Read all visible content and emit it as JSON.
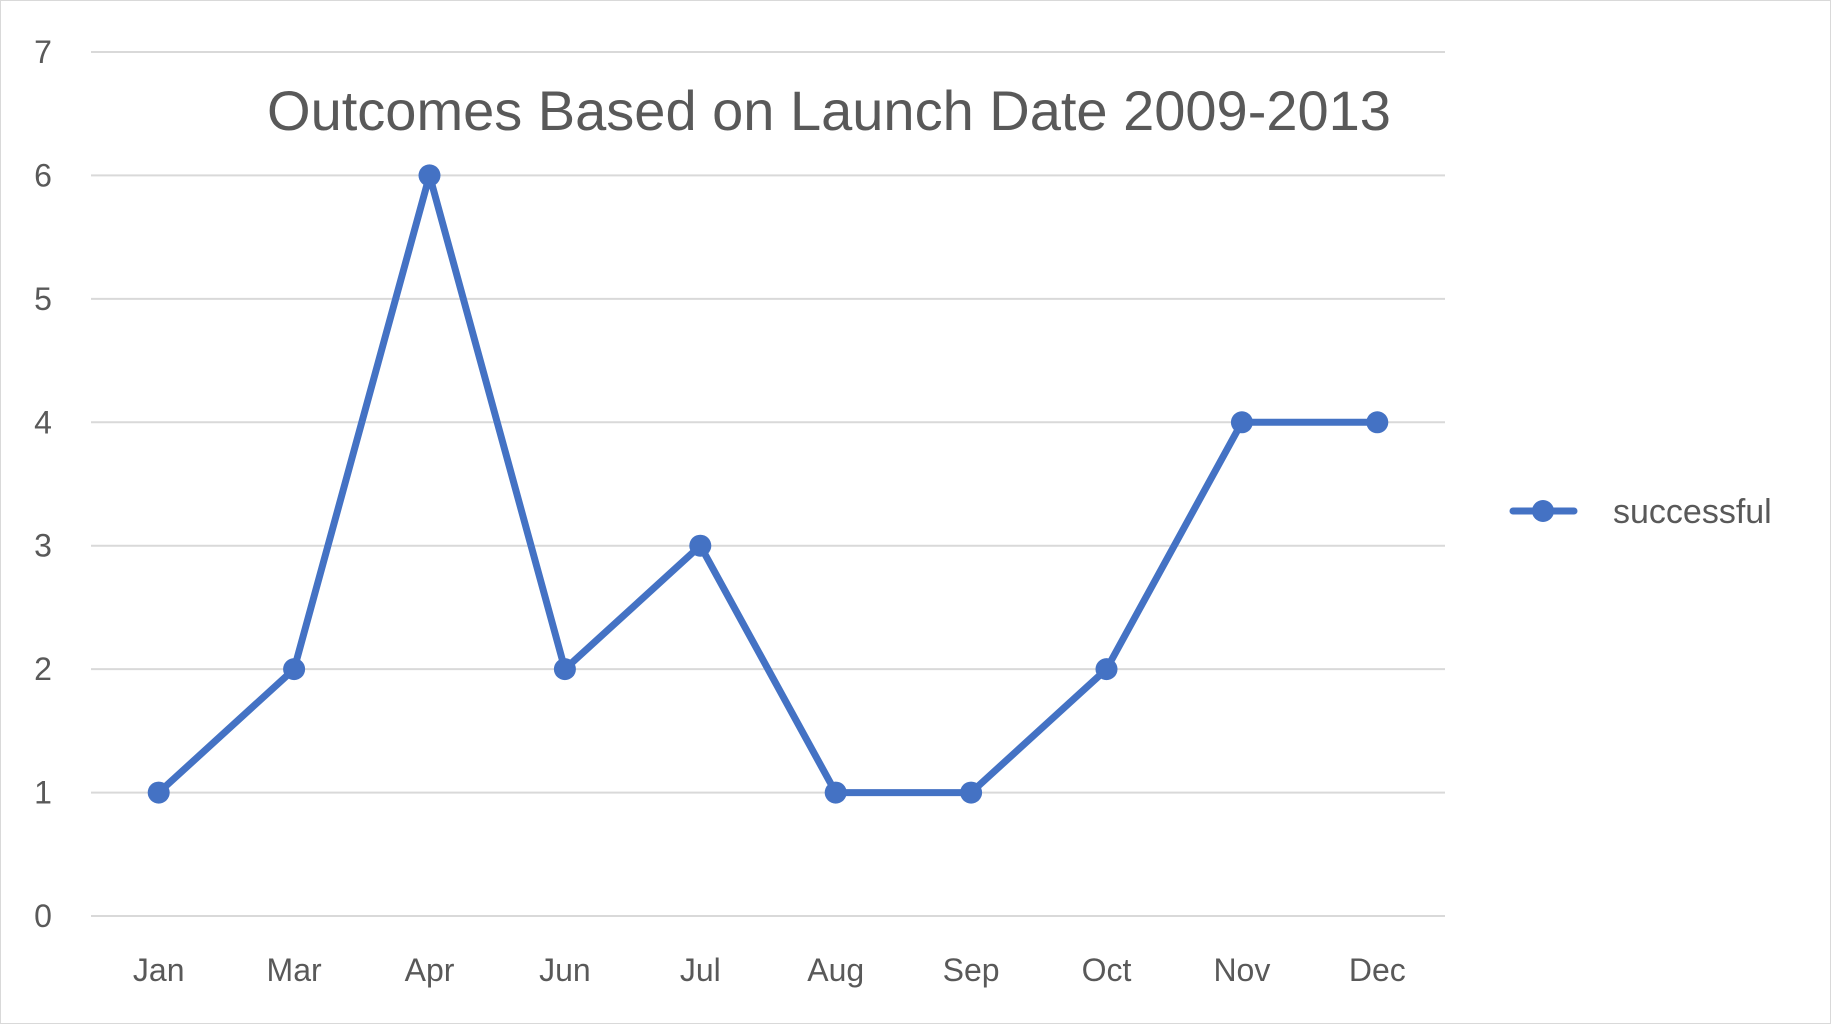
{
  "chart_data": {
    "type": "line",
    "title": "Outcomes Based on Launch Date 2009-2013",
    "xlabel": "",
    "ylabel": "",
    "categories": [
      "Jan",
      "Mar",
      "Apr",
      "Jun",
      "Jul",
      "Aug",
      "Sep",
      "Oct",
      "Nov",
      "Dec"
    ],
    "series": [
      {
        "name": "successful",
        "values": [
          1,
          2,
          6,
          2,
          3,
          1,
          1,
          2,
          4,
          4
        ],
        "color": "#4472c4"
      }
    ],
    "ylim": [
      0,
      7
    ],
    "yticks": [
      "0",
      "1",
      "2",
      "3",
      "4",
      "5",
      "6",
      "7"
    ],
    "grid": true,
    "gridColor": "#d9d9d9",
    "legend": "right"
  }
}
